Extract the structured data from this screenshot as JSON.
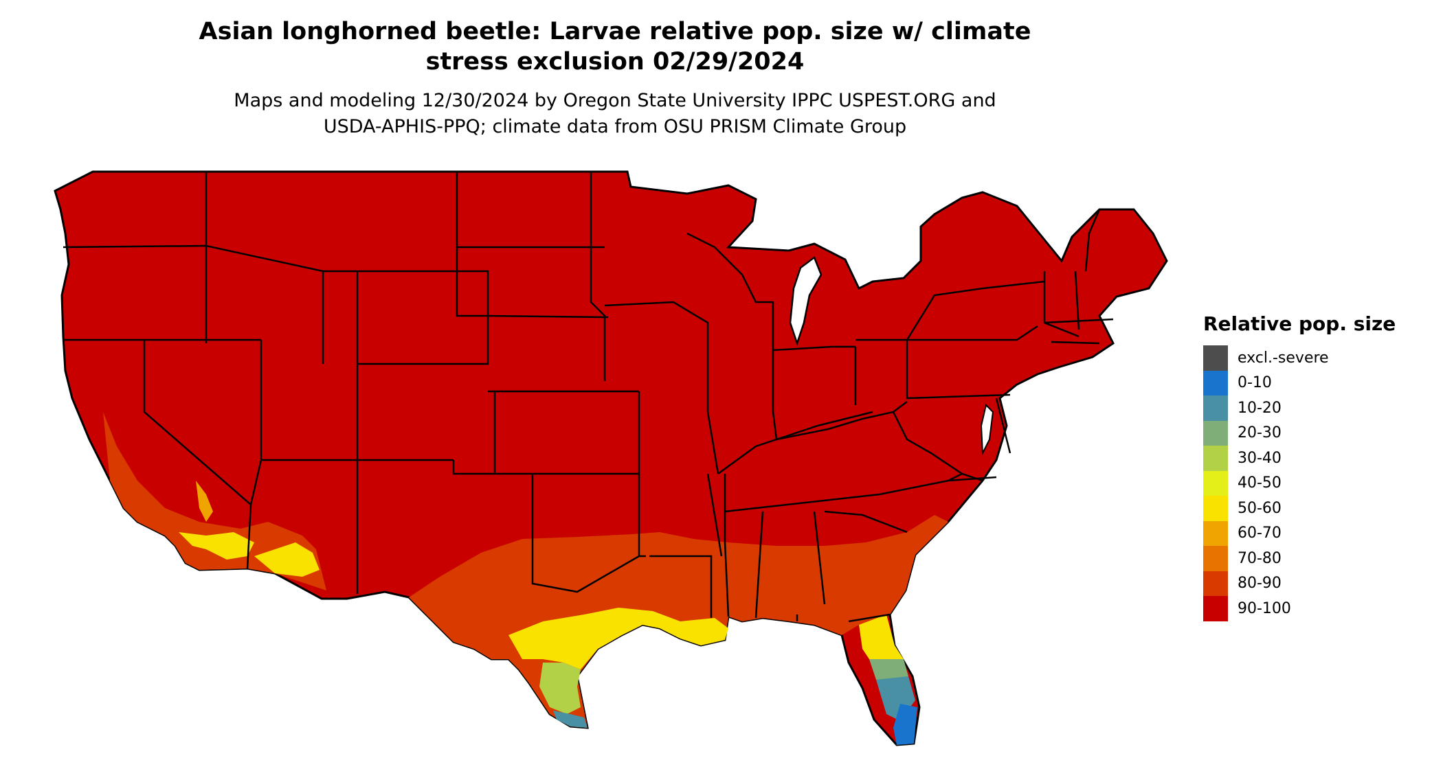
{
  "title": {
    "line1": "Asian longhorned beetle: Larvae relative pop. size w/ climate",
    "line2": "stress exclusion 02/29/2024"
  },
  "subtitle": {
    "line1": "Maps and modeling 12/30/2024 by Oregon State University IPPC USPEST.ORG and",
    "line2": "USDA-APHIS-PPQ; climate data from OSU PRISM Climate Group"
  },
  "map": {
    "region": "Contiguous United States",
    "dominant_class": "90-100",
    "state_border_color": "#000000"
  },
  "legend": {
    "title": "Relative pop. size",
    "items": [
      {
        "label": "excl.-severe",
        "color": "#4d4d4d"
      },
      {
        "label": "0-10",
        "color": "#1874cd"
      },
      {
        "label": "10-20",
        "color": "#4a90a4"
      },
      {
        "label": "20-30",
        "color": "#7fae78"
      },
      {
        "label": "30-40",
        "color": "#b3d147"
      },
      {
        "label": "40-50",
        "color": "#e4ef1a"
      },
      {
        "label": "50-60",
        "color": "#f9e200"
      },
      {
        "label": "60-70",
        "color": "#f0a400"
      },
      {
        "label": "70-80",
        "color": "#e87400"
      },
      {
        "label": "80-90",
        "color": "#d83a00"
      },
      {
        "label": "90-100",
        "color": "#c80000"
      }
    ]
  }
}
